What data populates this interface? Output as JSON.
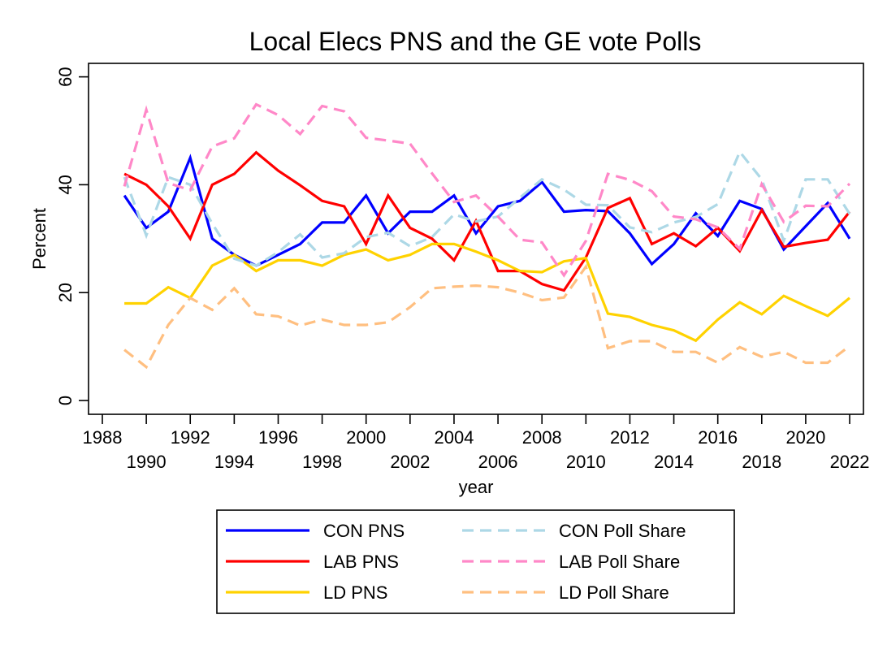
{
  "chart_data": {
    "type": "line",
    "title": "Local Elecs PNS and the GE vote Polls",
    "xlabel": "year",
    "ylabel": "Percent",
    "xlim": [
      1988,
      2022
    ],
    "ylim": [
      0,
      60
    ],
    "grid": false,
    "legend_position": "bottom",
    "x_ticks_upper": [
      "1988",
      "1992",
      "1996",
      "2000",
      "2004",
      "2008",
      "2012",
      "2016",
      "2020"
    ],
    "x_ticks_lower": [
      "1990",
      "1994",
      "1998",
      "2002",
      "2006",
      "2010",
      "2014",
      "2018",
      "2022"
    ],
    "y_ticks": [
      "0",
      "20",
      "40",
      "60"
    ],
    "x": [
      1989,
      1990,
      1991,
      1992,
      1993,
      1994,
      1995,
      1996,
      1997,
      1998,
      1999,
      2000,
      2001,
      2002,
      2003,
      2004,
      2005,
      2006,
      2007,
      2008,
      2009,
      2010,
      2011,
      2012,
      2013,
      2014,
      2015,
      2016,
      2017,
      2018,
      2019,
      2020,
      2021,
      2022
    ],
    "series": [
      {
        "name": "CON PNS",
        "color": "#0000ff",
        "dashed": false,
        "values": [
          38,
          32,
          35,
          45,
          30,
          27,
          25,
          27,
          29,
          33,
          33,
          38,
          31,
          35,
          35,
          38,
          31,
          36,
          37,
          40.5,
          35,
          35.3,
          35.1,
          31,
          25.3,
          29,
          34.7,
          30.5,
          37,
          35.5,
          28,
          32.3,
          36.6,
          30
        ]
      },
      {
        "name": "LAB PNS",
        "color": "#ff0000",
        "dashed": false,
        "values": [
          42,
          40,
          36,
          30,
          40,
          42,
          46,
          42.6,
          39.9,
          37,
          36,
          29,
          38,
          32,
          30,
          26,
          33.3,
          24,
          24,
          21.6,
          20.4,
          26.5,
          35.7,
          37.5,
          29,
          31,
          28.6,
          32,
          27.7,
          35.3,
          28.5,
          29.2,
          29.8,
          35
        ]
      },
      {
        "name": "LD PNS",
        "color": "#ffd200",
        "dashed": false,
        "values": [
          18,
          18,
          21,
          19,
          25,
          27,
          24,
          26,
          26,
          25,
          27,
          28,
          26,
          27,
          29,
          29,
          27.6,
          26,
          24,
          23.8,
          25.8,
          26.4,
          16.1,
          15.5,
          14,
          13,
          11.1,
          15,
          18.2,
          16,
          19.4,
          17.5,
          15.7,
          19
        ]
      },
      {
        "name": "CON Poll Share",
        "color": "#add8e6",
        "dashed": true,
        "values": [
          41.4,
          30.6,
          41.4,
          40,
          32.8,
          26.3,
          25,
          27.5,
          30.8,
          26.5,
          27.3,
          30.3,
          31.1,
          28.6,
          30.3,
          34.5,
          33.2,
          34.1,
          37.6,
          41,
          39.1,
          36.3,
          36.2,
          32.1,
          31.2,
          33,
          34,
          36.4,
          46.1,
          41,
          29.6,
          41,
          41,
          34.6
        ]
      },
      {
        "name": "LAB Poll Share",
        "color": "#ff88c8",
        "dashed": true,
        "values": [
          39.7,
          53.9,
          40.3,
          39,
          47.1,
          48.6,
          54.9,
          52.9,
          49.4,
          54.6,
          53.6,
          48.7,
          48.2,
          47.6,
          42.1,
          36.8,
          38,
          34.1,
          29.8,
          29.3,
          23.2,
          29.6,
          42,
          40.9,
          38.8,
          34.1,
          33.6,
          32.1,
          28.1,
          40.1,
          33.1,
          36.1,
          36,
          40.2
        ]
      },
      {
        "name": "LD Poll Share",
        "color": "#ffbf80",
        "dashed": true,
        "values": [
          9.4,
          6.2,
          14,
          19,
          16.8,
          20.8,
          16,
          15.6,
          13.9,
          15,
          14,
          14,
          14.5,
          17.3,
          20.8,
          21.1,
          21.3,
          21,
          20,
          18.6,
          19.1,
          24.8,
          9.7,
          11,
          11,
          9,
          9,
          7,
          9.9,
          8.1,
          9,
          7,
          7,
          10.1
        ]
      }
    ]
  }
}
